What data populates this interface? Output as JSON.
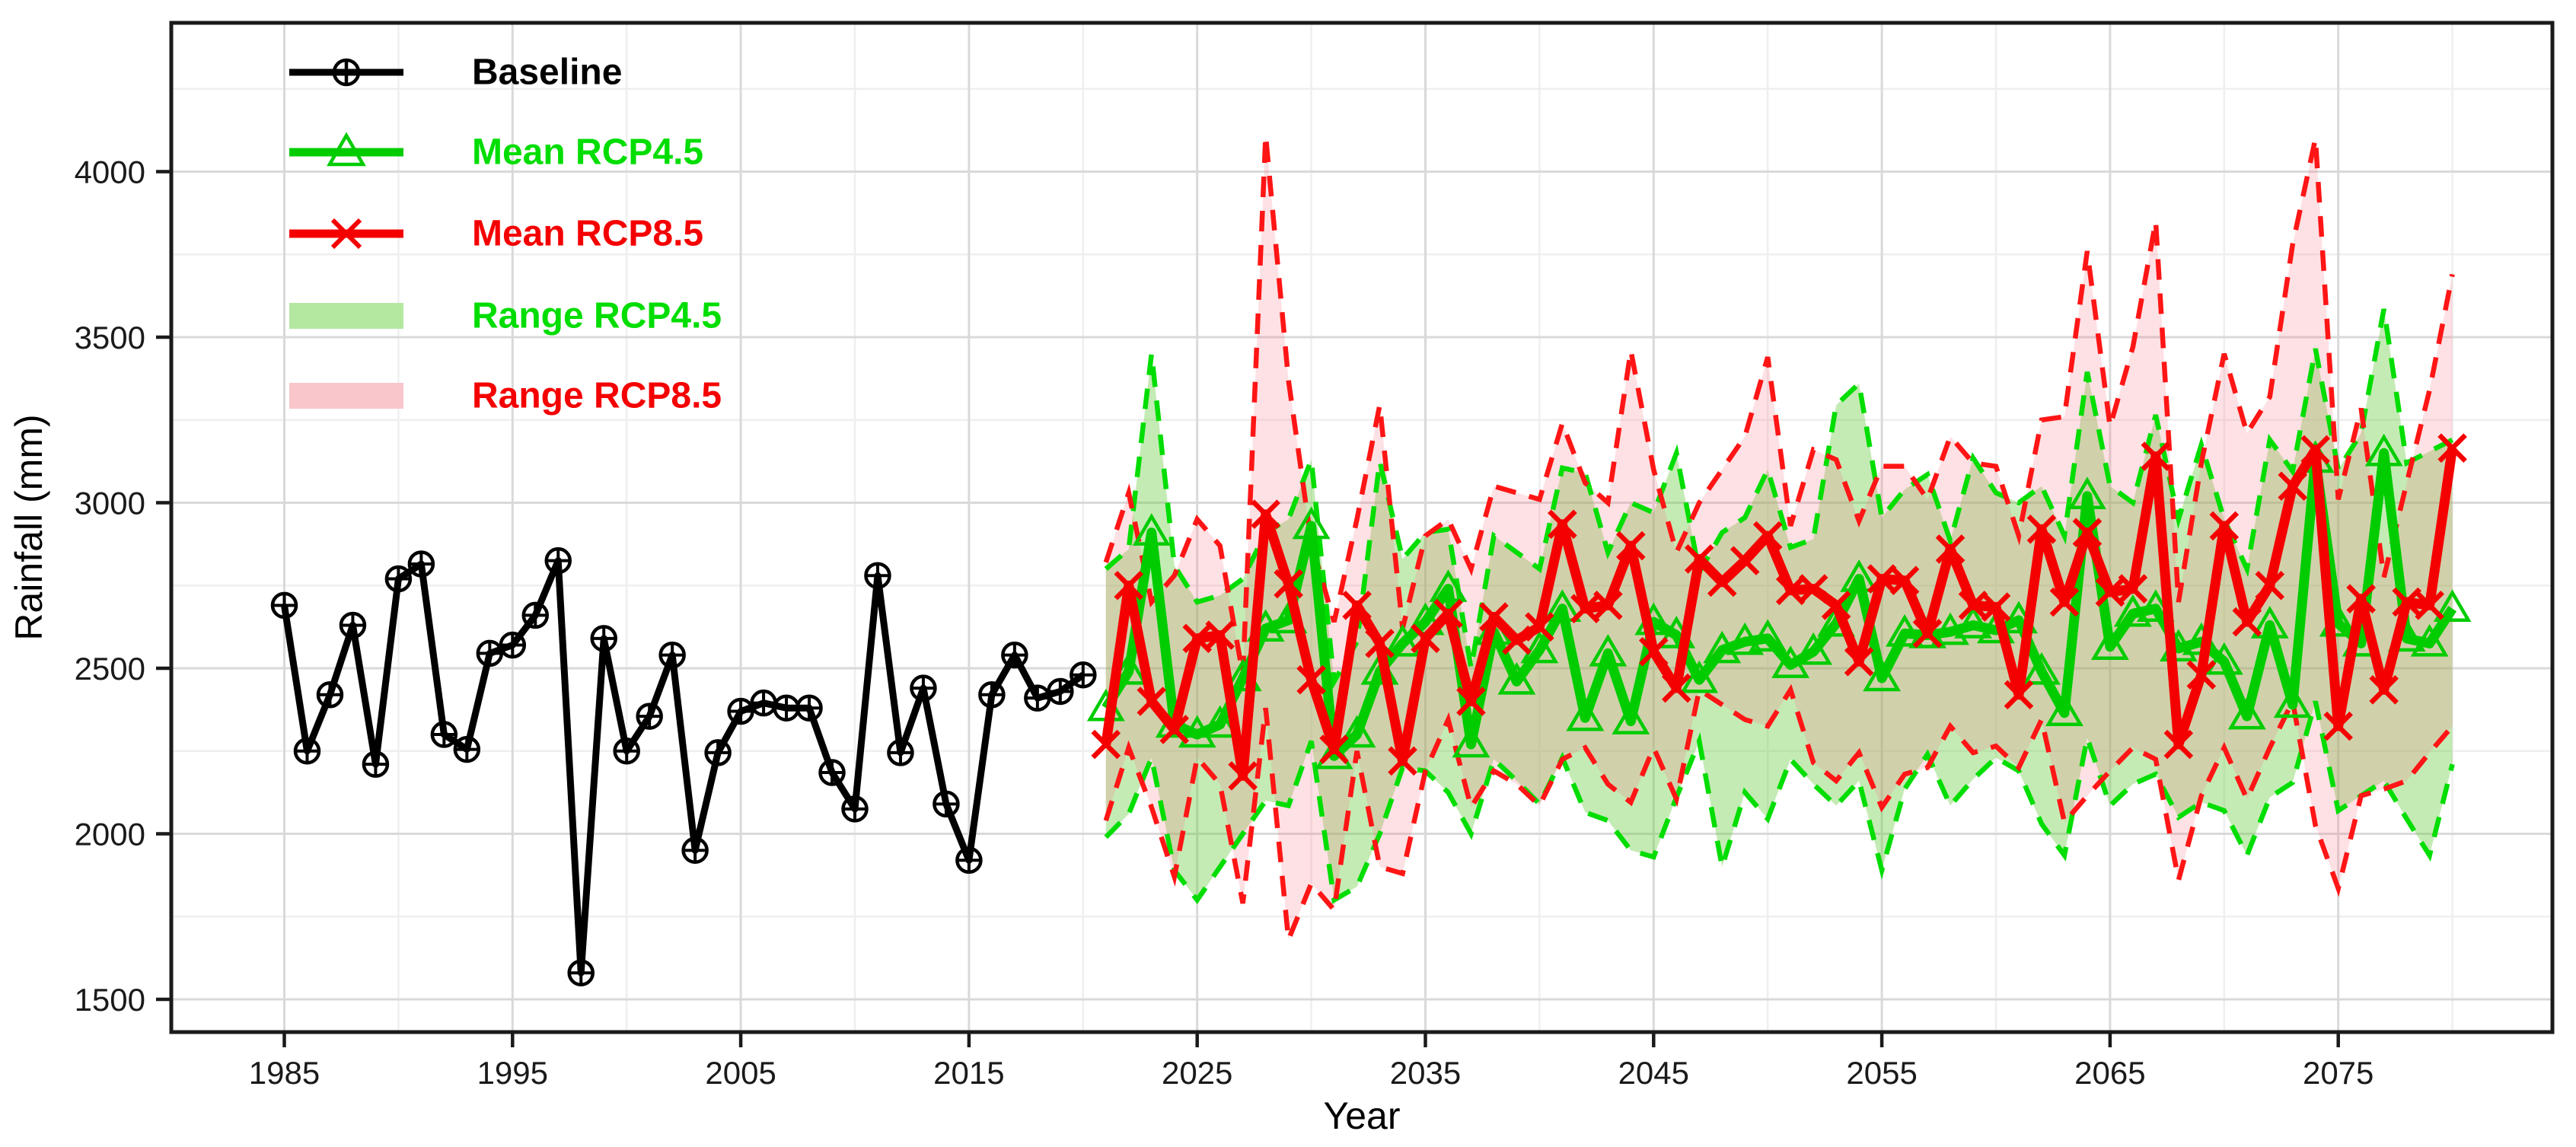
{
  "figure": {
    "type": "rainfall-projection-time-series",
    "background": "#ffffff"
  },
  "legend": {
    "position": "top-left-inside",
    "items": [
      {
        "label": "Baseline",
        "kind": "line",
        "marker": "circle-plus-icon",
        "color": "#000000"
      },
      {
        "label": "Mean RCP4.5",
        "kind": "line",
        "marker": "triangle-icon",
        "color": "#00dd00"
      },
      {
        "label": "Mean RCP8.5",
        "kind": "line",
        "marker": "x-icon",
        "color": "#f50000"
      },
      {
        "label": "Range RCP4.5",
        "kind": "band",
        "color": "#00dd00",
        "fill": "#b4e8a0"
      },
      {
        "label": "Range RCP8.5",
        "kind": "band",
        "color": "#f50000",
        "fill": "#f9c6cb"
      }
    ]
  },
  "chart_data": {
    "type": "line",
    "title": "",
    "xlabel": "Year",
    "ylabel": "Rainfall (mm)",
    "xlim": [
      1980,
      2084.5
    ],
    "ylim": [
      1400,
      4450
    ],
    "x_ticks": [
      1985,
      1995,
      2005,
      2015,
      2025,
      2035,
      2045,
      2055,
      2065,
      2075
    ],
    "y_ticks": [
      1500,
      2000,
      2500,
      3000,
      3500,
      4000
    ],
    "grid": "major+minor",
    "legend_position": "top-left-inside",
    "colors": {
      "baseline": "#000000",
      "rcp45_line": "#00cc00",
      "rcp45_edge": "#00dd00",
      "rcp45_fill": "rgba(110,205,70,0.40)",
      "rcp85_line": "#f50000",
      "rcp85_edge": "#ff1515",
      "rcp85_fill": "rgba(250,120,130,0.22)"
    },
    "series": [
      {
        "name": "Baseline",
        "type": "line",
        "color": "#000000",
        "marker": "circle-plus",
        "width": 9,
        "x": [
          1985,
          1986,
          1987,
          1988,
          1989,
          1990,
          1991,
          1992,
          1993,
          1994,
          1995,
          1996,
          1997,
          1998,
          1999,
          2000,
          2001,
          2002,
          2003,
          2004,
          2005,
          2006,
          2007,
          2008,
          2009,
          2010,
          2011,
          2012,
          2013,
          2014,
          2015,
          2016,
          2017,
          2018,
          2019,
          2020
        ],
        "y": [
          2690,
          2250,
          2420,
          2630,
          2210,
          2770,
          2815,
          2300,
          2255,
          2545,
          2570,
          2660,
          2825,
          1580,
          2590,
          2250,
          2355,
          2540,
          1950,
          2245,
          2370,
          2395,
          2380,
          2380,
          2185,
          2075,
          2780,
          2245,
          2440,
          2090,
          1920,
          2420,
          2540,
          2410,
          2430,
          2480
        ]
      },
      {
        "name": "Mean RCP4.5",
        "type": "line",
        "color": "#00cc00",
        "marker": "triangle",
        "width": 13,
        "x": [
          2021,
          2022,
          2023,
          2024,
          2025,
          2026,
          2027,
          2028,
          2029,
          2030,
          2031,
          2032,
          2033,
          2034,
          2035,
          2036,
          2037,
          2038,
          2039,
          2040,
          2041,
          2042,
          2043,
          2044,
          2045,
          2046,
          2047,
          2048,
          2049,
          2050,
          2051,
          2052,
          2053,
          2054,
          2055,
          2056,
          2057,
          2058,
          2059,
          2060,
          2061,
          2062,
          2063,
          2064,
          2065,
          2066,
          2067,
          2068,
          2069,
          2070,
          2071,
          2072,
          2073,
          2074,
          2075,
          2076,
          2077,
          2078,
          2079,
          2080
        ],
        "y": [
          2380,
          2490,
          2910,
          2330,
          2300,
          2330,
          2470,
          2620,
          2645,
          2930,
          2235,
          2300,
          2490,
          2575,
          2640,
          2740,
          2270,
          2610,
          2460,
          2555,
          2680,
          2350,
          2545,
          2340,
          2640,
          2600,
          2465,
          2555,
          2580,
          2590,
          2510,
          2550,
          2635,
          2770,
          2470,
          2605,
          2600,
          2610,
          2630,
          2615,
          2645,
          2490,
          2365,
          3020,
          2565,
          2665,
          2680,
          2560,
          2580,
          2520,
          2355,
          2630,
          2390,
          3130,
          2635,
          2575,
          3150,
          2590,
          2575,
          2680
        ]
      },
      {
        "name": "Mean RCP8.5",
        "type": "line",
        "color": "#f50000",
        "marker": "x",
        "width": 13,
        "x": [
          2021,
          2022,
          2023,
          2024,
          2025,
          2026,
          2027,
          2028,
          2029,
          2030,
          2031,
          2032,
          2033,
          2034,
          2035,
          2036,
          2037,
          2038,
          2039,
          2040,
          2041,
          2042,
          2043,
          2044,
          2045,
          2046,
          2047,
          2048,
          2049,
          2050,
          2051,
          2052,
          2053,
          2054,
          2055,
          2056,
          2057,
          2058,
          2059,
          2060,
          2061,
          2062,
          2063,
          2064,
          2065,
          2066,
          2067,
          2068,
          2069,
          2070,
          2071,
          2072,
          2073,
          2074,
          2075,
          2076,
          2077,
          2078,
          2079,
          2080
        ],
        "y": [
          2270,
          2750,
          2400,
          2315,
          2590,
          2600,
          2175,
          2965,
          2755,
          2465,
          2255,
          2690,
          2575,
          2220,
          2590,
          2665,
          2400,
          2655,
          2585,
          2625,
          2935,
          2680,
          2690,
          2870,
          2550,
          2440,
          2830,
          2760,
          2825,
          2900,
          2735,
          2740,
          2690,
          2520,
          2770,
          2765,
          2605,
          2860,
          2690,
          2685,
          2420,
          2920,
          2700,
          2910,
          2730,
          2740,
          3140,
          2270,
          2480,
          2930,
          2640,
          2750,
          3050,
          3160,
          2325,
          2710,
          2435,
          2700,
          2690,
          3165
        ]
      },
      {
        "name": "Range RCP4.5",
        "type": "band",
        "color": "#00dd00",
        "fill": "rgba(110,205,70,0.40)",
        "x": [
          2021,
          2022,
          2023,
          2024,
          2025,
          2026,
          2027,
          2028,
          2029,
          2030,
          2031,
          2032,
          2033,
          2034,
          2035,
          2036,
          2037,
          2038,
          2039,
          2040,
          2041,
          2042,
          2043,
          2044,
          2045,
          2046,
          2047,
          2048,
          2049,
          2050,
          2051,
          2052,
          2053,
          2054,
          2055,
          2056,
          2057,
          2058,
          2059,
          2060,
          2061,
          2062,
          2063,
          2064,
          2065,
          2066,
          2067,
          2068,
          2069,
          2070,
          2071,
          2072,
          2073,
          2074,
          2075,
          2076,
          2077,
          2078,
          2079,
          2080
        ],
        "low": [
          1990,
          2060,
          2230,
          1890,
          1800,
          1900,
          2000,
          2100,
          2085,
          2280,
          1800,
          1840,
          2000,
          2200,
          2190,
          2125,
          2000,
          2225,
          2160,
          2090,
          2230,
          2065,
          2040,
          1950,
          1930,
          2110,
          2280,
          1900,
          2125,
          2045,
          2225,
          2150,
          2085,
          2160,
          1890,
          2135,
          2240,
          2085,
          2165,
          2230,
          2190,
          2030,
          1935,
          2290,
          2085,
          2150,
          2180,
          2050,
          2095,
          2070,
          1935,
          2110,
          2155,
          2400,
          2070,
          2115,
          2160,
          2045,
          1935,
          2210
        ],
        "high": [
          2800,
          2860,
          3450,
          2810,
          2700,
          2720,
          2770,
          2910,
          2950,
          3130,
          2460,
          2580,
          3125,
          2830,
          2910,
          2920,
          2500,
          2900,
          2850,
          2800,
          3105,
          3090,
          2850,
          3000,
          2970,
          3150,
          2790,
          2910,
          2955,
          3100,
          2865,
          2890,
          3295,
          3360,
          2955,
          3040,
          3085,
          2885,
          3135,
          3030,
          3000,
          3050,
          2900,
          3395,
          3050,
          3000,
          3265,
          2950,
          3175,
          2950,
          2800,
          3190,
          3095,
          3465,
          3100,
          3210,
          3585,
          3120,
          3155,
          3190
        ]
      },
      {
        "name": "Range RCP8.5",
        "type": "band",
        "color": "#ff1515",
        "fill": "rgba(250,120,130,0.22)",
        "x": [
          2021,
          2022,
          2023,
          2024,
          2025,
          2026,
          2027,
          2028,
          2029,
          2030,
          2031,
          2032,
          2033,
          2034,
          2035,
          2036,
          2037,
          2038,
          2039,
          2040,
          2041,
          2042,
          2043,
          2044,
          2045,
          2046,
          2047,
          2048,
          2049,
          2050,
          2051,
          2052,
          2053,
          2054,
          2055,
          2056,
          2057,
          2058,
          2059,
          2060,
          2061,
          2062,
          2063,
          2064,
          2065,
          2066,
          2067,
          2068,
          2069,
          2070,
          2071,
          2072,
          2073,
          2074,
          2075,
          2076,
          2077,
          2078,
          2079,
          2080
        ],
        "low": [
          2040,
          2260,
          2080,
          1870,
          2230,
          2150,
          1790,
          2380,
          1680,
          1850,
          1770,
          2250,
          1900,
          1880,
          2190,
          2345,
          2080,
          2190,
          2150,
          2085,
          2225,
          2260,
          2150,
          2095,
          2260,
          2105,
          2435,
          2390,
          2345,
          2325,
          2435,
          2215,
          2160,
          2245,
          2080,
          2180,
          2200,
          2325,
          2245,
          2265,
          2200,
          2345,
          2035,
          2115,
          2190,
          2260,
          2225,
          1860,
          2115,
          2260,
          2105,
          2260,
          2400,
          2025,
          1835,
          2115,
          2135,
          2160,
          2245,
          2325
        ],
        "high": [
          2820,
          3030,
          2700,
          2780,
          2950,
          2870,
          2480,
          4110,
          3370,
          2880,
          2640,
          2950,
          3295,
          2620,
          2900,
          2950,
          2800,
          3050,
          3030,
          3010,
          3240,
          3060,
          3000,
          3460,
          3100,
          2850,
          3000,
          3100,
          3200,
          3440,
          2930,
          3160,
          3130,
          2945,
          3110,
          3110,
          3010,
          3200,
          3120,
          3110,
          2900,
          3250,
          3260,
          3760,
          3230,
          3470,
          3850,
          2700,
          3120,
          3450,
          3210,
          3320,
          3780,
          4100,
          3010,
          3285,
          2775,
          3060,
          3340,
          3690
        ]
      }
    ]
  }
}
